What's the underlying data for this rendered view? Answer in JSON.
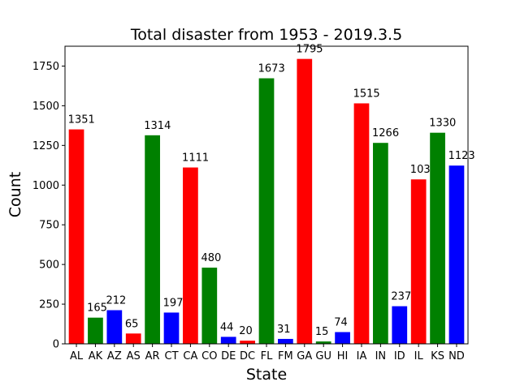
{
  "chart_data": {
    "type": "bar",
    "title": "Total disaster from 1953 - 2019.3.5",
    "xlabel": "State",
    "ylabel": "Count",
    "ylim": [
      0,
      1875
    ],
    "yticks": [
      0,
      250,
      500,
      750,
      1000,
      1250,
      1500,
      1750
    ],
    "grid": false,
    "categories": [
      "AL",
      "AK",
      "AZ",
      "AS",
      "AR",
      "CT",
      "CA",
      "CO",
      "DE",
      "DC",
      "FL",
      "FM",
      "GA",
      "GU",
      "HI",
      "IA",
      "IN",
      "ID",
      "IL",
      "KS",
      "ND"
    ],
    "values": [
      1351,
      165,
      212,
      65,
      1314,
      197,
      1111,
      480,
      44,
      20,
      1673,
      31,
      1795,
      15,
      74,
      1515,
      1266,
      237,
      1036,
      1330,
      1123
    ],
    "labels": [
      "1351",
      "165",
      "212",
      "65",
      "1314",
      "197",
      "1111",
      "480",
      "44",
      "20",
      "1673",
      "31",
      "1795",
      "15",
      "74",
      "1515",
      "1266",
      "237",
      "1036",
      "1330",
      "1123"
    ],
    "colors": [
      "#ff0000",
      "#008000",
      "#0000ff",
      "#ff0000",
      "#008000",
      "#0000ff",
      "#ff0000",
      "#008000",
      "#0000ff",
      "#ff0000",
      "#008000",
      "#0000ff",
      "#ff0000",
      "#008000",
      "#0000ff",
      "#ff0000",
      "#008000",
      "#0000ff",
      "#ff0000",
      "#008000",
      "#0000ff"
    ]
  }
}
